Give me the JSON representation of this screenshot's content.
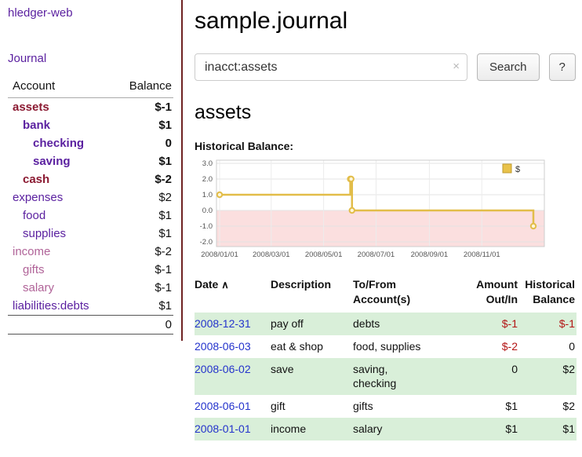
{
  "colors": {
    "link_purple": "#5b21a0",
    "link_blue": "#2433cc",
    "negative_red": "#b31414",
    "maroon_account": "#8b1a32",
    "muted_mauve": "#b06398",
    "muted_rose": "#c8607e",
    "row_green": "#d9efd9",
    "chart_line_gold": "#e2bd49",
    "chart_negative_pink": "#fbdfdf",
    "sidebar_divider": "#6e2222"
  },
  "sidebar": {
    "app_title": "hledger-web",
    "nav_journal": "Journal",
    "accounts": {
      "col_account": "Account",
      "col_balance": "Balance",
      "rows": [
        {
          "name": "assets",
          "balance": "$-1",
          "name_class": "maroon bold",
          "bal_class": "neg bold",
          "indent_class": "lvl0"
        },
        {
          "name": "bank",
          "balance": "$1",
          "name_class": "purple bold",
          "bal_class": "bold",
          "indent_class": "lvl1"
        },
        {
          "name": "checking",
          "balance": "0",
          "name_class": "purple bold",
          "bal_class": "bold",
          "indent_class": "lvl2"
        },
        {
          "name": "saving",
          "balance": "$1",
          "name_class": "purple bold",
          "bal_class": "bold",
          "indent_class": "lvl2"
        },
        {
          "name": "cash",
          "balance": "$-2",
          "name_class": "maroon bold",
          "bal_class": "neg bold",
          "indent_class": "lvl1"
        },
        {
          "name": "expenses",
          "balance": "$2",
          "name_class": "purple",
          "bal_class": "",
          "indent_class": "lvl0"
        },
        {
          "name": "food",
          "balance": "$1",
          "name_class": "purple",
          "bal_class": "",
          "indent_class": "lvl1"
        },
        {
          "name": "supplies",
          "balance": "$1",
          "name_class": "purple",
          "bal_class": "",
          "indent_class": "lvl1"
        },
        {
          "name": "income",
          "balance": "$-2",
          "name_class": "mauve",
          "bal_class": "rose",
          "indent_class": "lvl0"
        },
        {
          "name": "gifts",
          "balance": "$-1",
          "name_class": "mauve",
          "bal_class": "rose",
          "indent_class": "lvl1"
        },
        {
          "name": "salary",
          "balance": "$-1",
          "name_class": "mauve",
          "bal_class": "rose",
          "indent_class": "lvl1"
        },
        {
          "name": "liabilities:debts",
          "balance": "$1",
          "name_class": "purple",
          "bal_class": "",
          "indent_class": "lvl0"
        }
      ],
      "total": "0"
    }
  },
  "main": {
    "page_title": "sample.journal",
    "search": {
      "query": "inacct:assets",
      "clear": "×",
      "submit_label": "Search",
      "help_label": "?"
    },
    "account_heading": "assets",
    "chart_title": "Historical Balance:"
  },
  "chart_data": {
    "type": "line",
    "step": true,
    "title": "Historical Balance",
    "series": [
      {
        "name": "$",
        "points": [
          {
            "date": "2008-01-01",
            "value": 1
          },
          {
            "date": "2008-06-01",
            "value": 2
          },
          {
            "date": "2008-06-02",
            "value": 2
          },
          {
            "date": "2008-06-03",
            "value": 0
          },
          {
            "date": "2008-12-31",
            "value": -1
          }
        ]
      }
    ],
    "ylim": [
      -2.3,
      3.2
    ],
    "y_ticks": [
      "3.0",
      "2.0",
      "1.0",
      "0.0",
      "-1.0",
      "-2.0"
    ],
    "x_ticks": [
      "2008/01/01",
      "2008/03/01",
      "2008/05/01",
      "2008/07/01",
      "2008/09/01",
      "2008/11/01"
    ],
    "legend": {
      "label": "$",
      "position": "top-right"
    },
    "grid": true,
    "negative_region_below": 0
  },
  "register": {
    "headers": {
      "date": "Date",
      "sort_indicator": "∧",
      "description": "Description",
      "accounts": "To/From\nAccount(s)",
      "amount": "Amount\nOut/In",
      "balance": "Historical\nBalance"
    },
    "rows": [
      {
        "date": "2008-12-31",
        "description": "pay off",
        "accounts": "debts",
        "amount": "$-1",
        "balance": "$-1",
        "row_class": "striped",
        "amount_class": "neg",
        "balance_class": "neg"
      },
      {
        "date": "2008-06-03",
        "description": "eat & shop",
        "accounts": "food, supplies",
        "amount": "$-2",
        "balance": "0",
        "row_class": "",
        "amount_class": "neg",
        "balance_class": ""
      },
      {
        "date": "2008-06-02",
        "description": "save",
        "accounts": "saving,\nchecking",
        "amount": "0",
        "balance": "$2",
        "row_class": "striped",
        "amount_class": "",
        "balance_class": ""
      },
      {
        "date": "2008-06-01",
        "description": "gift",
        "accounts": "gifts",
        "amount": "$1",
        "balance": "$2",
        "row_class": "",
        "amount_class": "",
        "balance_class": ""
      },
      {
        "date": "2008-01-01",
        "description": "income",
        "accounts": "salary",
        "amount": "$1",
        "balance": "$1",
        "row_class": "striped",
        "amount_class": "",
        "balance_class": ""
      }
    ]
  }
}
